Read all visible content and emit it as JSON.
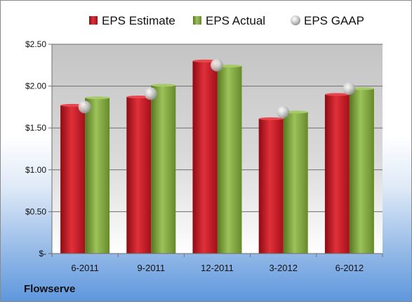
{
  "company": "Flowserve",
  "colors": {
    "estimate": "#c8141e",
    "actual": "#7fa33a",
    "gaap": "#c9c9c9"
  },
  "chart_data": {
    "type": "bar",
    "categories": [
      "6-2011",
      "9-2011",
      "12-2011",
      "3-2012",
      "6-2012"
    ],
    "series": [
      {
        "name": "EPS Estimate",
        "kind": "bar",
        "values": [
          1.77,
          1.87,
          2.3,
          1.61,
          1.9
        ]
      },
      {
        "name": "EPS Actual",
        "kind": "bar",
        "values": [
          1.86,
          2.01,
          2.24,
          1.69,
          1.97
        ]
      },
      {
        "name": "EPS GAAP",
        "kind": "marker",
        "values": [
          1.75,
          1.91,
          2.25,
          1.69,
          1.97
        ]
      }
    ],
    "yticks": [
      0,
      0.5,
      1.0,
      1.5,
      2.0,
      2.5
    ],
    "ytick_labels": [
      "$-",
      "$0.50",
      "$1.00",
      "$1.50",
      "$2.00",
      "$2.50"
    ],
    "ylim": [
      0,
      2.5
    ],
    "grid": true,
    "legend": "top"
  }
}
